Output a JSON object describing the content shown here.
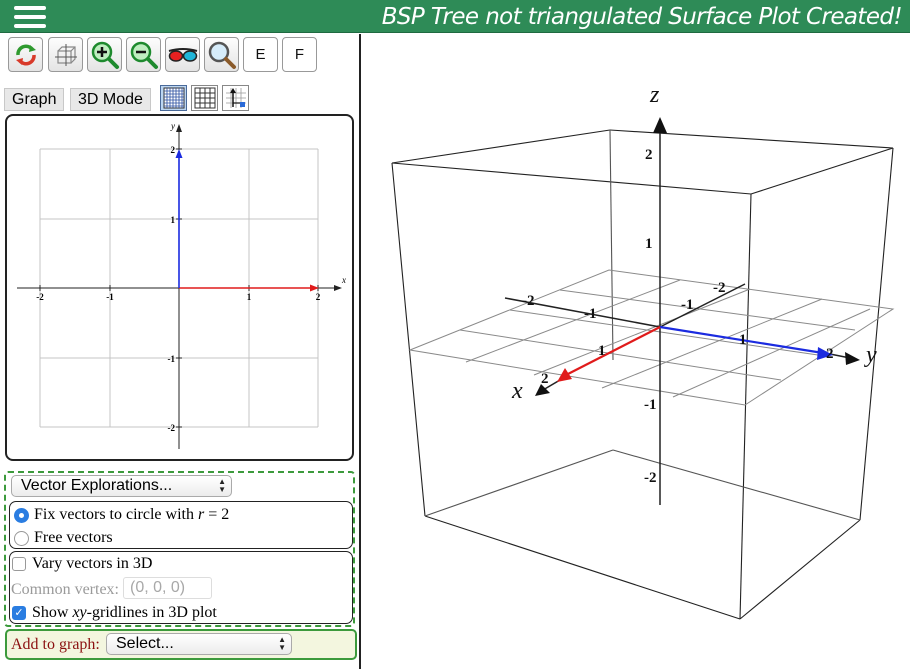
{
  "header": {
    "status": "BSP Tree not triangulated Surface Plot Created!",
    "bar_color": "#2e8b57"
  },
  "toolbar": {
    "buttons": [
      {
        "icon": "reset-rotate-icon"
      },
      {
        "icon": "view-3d-icon"
      },
      {
        "icon": "zoom-in-icon"
      },
      {
        "icon": "zoom-out-icon"
      },
      {
        "icon": "3d-glasses-icon"
      },
      {
        "icon": "magnifier-icon"
      }
    ],
    "e_label": "E",
    "f_label": "F"
  },
  "tabs": {
    "graph_label": "Graph",
    "mode_label": "3D Mode"
  },
  "graph2d": {
    "x_label": "x",
    "y_label": "y",
    "x_ticks": [
      "-2",
      "-1",
      "1",
      "2"
    ],
    "y_ticks": [
      "2",
      "1",
      "-1",
      "-2"
    ],
    "vectors": [
      {
        "name": "red",
        "to": [
          2,
          0
        ],
        "color": "#e01b1b"
      },
      {
        "name": "blue",
        "to": [
          0,
          2
        ],
        "color": "#1b2be0"
      }
    ]
  },
  "controls": {
    "explorations_select": "Vector Explorations...",
    "fix_vectors_text": "Fix vectors to circle with",
    "fix_vectors_var": "r",
    "fix_vectors_eq": " = 2",
    "free_vectors": "Free vectors",
    "vary_3d": "Vary vectors in 3D",
    "common_vertex_label": "Common vertex:",
    "common_vertex_placeholder": "(0, 0, 0)",
    "gridlines_pre": "Show ",
    "gridlines_var": "xy",
    "gridlines_post": "-gridlines in 3D plot",
    "fix_checked": true,
    "free_checked": false,
    "vary_checked": false,
    "gridlines_checked": true
  },
  "add_graph": {
    "label": "Add to graph:",
    "select": "Select..."
  },
  "plot3d": {
    "axis_labels": {
      "x": "x",
      "y": "y",
      "z": "z"
    },
    "z_ticks": [
      "2",
      "1",
      "-1",
      "-2"
    ],
    "y_ticks": [
      "-2",
      "-1",
      "1",
      "2"
    ],
    "x_ticks": [
      "-1",
      "1",
      "2"
    ],
    "vector_colors": {
      "x": "#e01b1b",
      "y": "#1b2be0"
    }
  }
}
